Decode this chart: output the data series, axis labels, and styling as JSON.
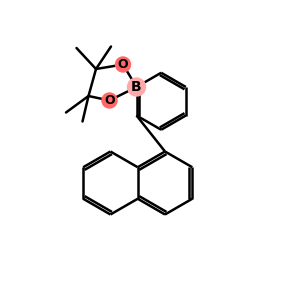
{
  "background_color": "#ffffff",
  "bond_color": "#000000",
  "bond_width": 1.8,
  "atom_B_bg": "#ffaaaa",
  "atom_O_bg": "#ff6666",
  "figsize": [
    3.0,
    3.0
  ],
  "dpi": 100,
  "xlim": [
    0,
    10
  ],
  "ylim": [
    0,
    10
  ]
}
